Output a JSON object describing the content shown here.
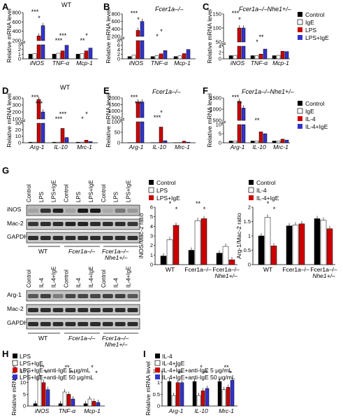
{
  "colors": {
    "black": "#000000",
    "white": "#ffffff",
    "red": "#cc0000",
    "blue": "#3333cc"
  },
  "panels": {
    "A": {
      "letter": "A",
      "title": "WT"
    },
    "B": {
      "letter": "B",
      "title": "Fcer1a–/–"
    },
    "C": {
      "letter": "C",
      "title": "Fcer1a–/–Nhe1+/–"
    },
    "D": {
      "letter": "D",
      "title": "WT"
    },
    "E": {
      "letter": "E",
      "title": "Fcer1a–/–"
    },
    "F": {
      "letter": "F",
      "title": "Fcer1a–/–Nhe1+/–"
    },
    "G": {
      "letter": "G"
    },
    "H": {
      "letter": "H"
    },
    "I": {
      "letter": "I"
    }
  },
  "ylabels": {
    "mrna": "Relative mRNA level",
    "inos_ratio": "iNOS/Mac-2 ratio",
    "arg_ratio": "Arg-1/Mac-2 ratio"
  },
  "legends": {
    "m1": [
      "Control",
      "IgE",
      "LPS",
      "LPS+IgE"
    ],
    "m2": [
      "Control",
      "IgE",
      "IL-4",
      "IL-4+IgE"
    ],
    "g_left": [
      "Control",
      "LPS",
      "LPS+IgE"
    ],
    "g_right": [
      "Control",
      "IL-4",
      "IL-4+IgE"
    ],
    "h": [
      "LPS",
      "LPS+IgE",
      "LPS+IgE+anti-IgE 5 μg/mL",
      "LPS+IgE+anti-IgE 50 μg/mL"
    ],
    "i": [
      "IL-4",
      "IL-4+IgE",
      "IL-4+IgE+anti-IgE 5 μg/mL",
      "IL-4+IgE+anti-IgE 50 μg/mL"
    ]
  },
  "blot": {
    "lanes_top": [
      "Control",
      "LPS",
      "LPS+IgE",
      "Control",
      "LPS",
      "LPS+IgE",
      "Control",
      "LPS",
      "LPS+IgE"
    ],
    "lanes_bottom": [
      "Control",
      "IL-4",
      "IL-4+IgE",
      "Control",
      "IL-4",
      "IL-4+IgE",
      "Control",
      "IL-4",
      "IL-4+IgE"
    ],
    "rows_top": [
      "iNOS",
      "Mac-2",
      "GAPDH"
    ],
    "rows_bottom": [
      "Arg-1",
      "Mac-2",
      "GAPDH"
    ],
    "genotypes": [
      "WT",
      "Fcer1a–/–",
      "Fcer1a–/–"
    ],
    "genotype_sub": "Nhe1+/–"
  },
  "chart_data": [
    {
      "id": "A",
      "type": "bar",
      "title": "WT",
      "ylabel": "Relative mRNA level",
      "categories": [
        "iNOS",
        "TNF-α",
        "Mcp-1"
      ],
      "broken_axis": true,
      "ylim_low": [
        0,
        3
      ],
      "yticks_low": [
        0,
        1,
        2,
        3
      ],
      "ylim_high": [
        200,
        800
      ],
      "yticks_high": [
        200,
        400,
        600,
        800
      ],
      "series": [
        {
          "name": "Control",
          "values": [
            1,
            1,
            1
          ]
        },
        {
          "name": "IgE",
          "values": [
            1.1,
            1.2,
            1.1
          ]
        },
        {
          "name": "LPS",
          "values": [
            300,
            1.7,
            1.7
          ]
        },
        {
          "name": "LPS+IgE",
          "values": [
            520,
            2.9,
            2.3
          ]
        }
      ],
      "significance": [
        "***",
        "*",
        "***",
        "***",
        "**",
        "*"
      ]
    },
    {
      "id": "B",
      "type": "bar",
      "title": "Fcer1a–/–",
      "ylabel": "Relative mRNA level",
      "categories": [
        "iNOS",
        "TNF-α",
        "Mcp-1"
      ],
      "broken_axis": true,
      "ylim_low": [
        0,
        8
      ],
      "yticks_low": [
        0,
        2,
        4,
        6,
        8
      ],
      "ylim_high": [
        200,
        800
      ],
      "yticks_high": [
        200,
        400,
        600,
        800
      ],
      "series": [
        {
          "name": "Control",
          "values": [
            1,
            1,
            1
          ]
        },
        {
          "name": "IgE",
          "values": [
            1.6,
            1.4,
            1.3
          ]
        },
        {
          "name": "LPS",
          "values": [
            360,
            2.2,
            2.3
          ]
        },
        {
          "name": "LPS+IgE",
          "values": [
            600,
            3.6,
            4.1
          ]
        }
      ],
      "significance": [
        "***",
        "*",
        "*",
        "*"
      ]
    },
    {
      "id": "C",
      "type": "bar",
      "title": "Fcer1a–/–Nhe1+/–",
      "ylabel": "Relative mRNA level",
      "categories": [
        "iNOS",
        "TNF-α",
        "Mcp-1"
      ],
      "broken_axis": true,
      "ylim_low": [
        0,
        4
      ],
      "yticks_low": [
        0,
        2,
        4
      ],
      "ylim_high": [
        50,
        150
      ],
      "yticks_high": [
        50,
        100,
        150
      ],
      "series": [
        {
          "name": "Control",
          "values": [
            1,
            1,
            1
          ]
        },
        {
          "name": "IgE",
          "values": [
            1.1,
            1,
            1.1
          ]
        },
        {
          "name": "LPS",
          "values": [
            100,
            1.5,
            2.4
          ]
        },
        {
          "name": "LPS+IgE",
          "values": [
            100,
            3.1,
            2.3
          ]
        }
      ],
      "significance": [
        "***",
        "*",
        "*",
        "**"
      ]
    },
    {
      "id": "D",
      "type": "bar",
      "title": "WT",
      "ylabel": "Relative mRNA level",
      "categories": [
        "Arg-1",
        "IL-10",
        "Mrc-1"
      ],
      "broken_axis": true,
      "ylim_low": [
        0,
        30
      ],
      "yticks_low": [
        0,
        10,
        20,
        30
      ],
      "ylim_high": [
        100,
        400
      ],
      "yticks_high": [
        100,
        200,
        300,
        400
      ],
      "series": [
        {
          "name": "Control",
          "values": [
            1,
            1,
            1
          ]
        },
        {
          "name": "IgE",
          "values": [
            1,
            1,
            1
          ]
        },
        {
          "name": "IL-4",
          "values": [
            380,
            22,
            4
          ]
        },
        {
          "name": "IL-4+IgE",
          "values": [
            200,
            8,
            2
          ]
        }
      ],
      "significance": [
        "***",
        "***",
        "***",
        "***",
        "*",
        "*"
      ]
    },
    {
      "id": "E",
      "type": "bar",
      "title": "Fcer1a–/–",
      "ylabel": "Relative mRNA level",
      "categories": [
        "Arg-1",
        "IL-10",
        "Mrc-1"
      ],
      "broken_axis": true,
      "ylim_low": [
        0,
        100
      ],
      "yticks_low": [
        0,
        50,
        100
      ],
      "ylim_high": [
        500,
        2000
      ],
      "yticks_high": [
        500,
        1000,
        1500,
        2000
      ],
      "series": [
        {
          "name": "Control",
          "values": [
            1,
            1,
            1
          ]
        },
        {
          "name": "IgE",
          "values": [
            1,
            1,
            1
          ]
        },
        {
          "name": "IL-4",
          "values": [
            1700,
            75,
            8
          ]
        },
        {
          "name": "IL-4+IgE",
          "values": [
            1700,
            10,
            3
          ]
        }
      ],
      "significance": [
        "***",
        "***",
        "***",
        "*"
      ]
    },
    {
      "id": "F",
      "type": "bar",
      "title": "Fcer1a–/–Nhe1+/–",
      "ylabel": "Relative mRNA level",
      "categories": [
        "Arg-1",
        "IL-10",
        "Mrc-1"
      ],
      "broken_axis": true,
      "ylim_low": [
        0,
        10
      ],
      "yticks_low": [
        0,
        5,
        10
      ],
      "ylim_high": [
        500,
        1500
      ],
      "yticks_high": [
        500,
        1000,
        1500
      ],
      "series": [
        {
          "name": "Control",
          "values": [
            1,
            1,
            1
          ]
        },
        {
          "name": "IgE",
          "values": [
            1,
            1,
            1
          ]
        },
        {
          "name": "IL-4",
          "values": [
            1350,
            6,
            2
          ]
        },
        {
          "name": "IL-4+IgE",
          "values": [
            1050,
            5,
            1.5
          ]
        }
      ],
      "significance": [
        "***",
        "**",
        "**"
      ]
    },
    {
      "id": "G-iNOS",
      "type": "bar",
      "ylabel": "iNOS/Mac-2 ratio",
      "categories": [
        "WT",
        "Fcer1a–/–",
        "Fcer1a–/– Nhe1+/–"
      ],
      "ylim": [
        0,
        6
      ],
      "yticks": [
        0,
        1,
        2,
        3,
        4,
        5,
        6
      ],
      "series": [
        {
          "name": "Control",
          "values": [
            0.9,
            1.5,
            1.2
          ]
        },
        {
          "name": "LPS",
          "values": [
            2.6,
            4.6,
            1.9
          ]
        },
        {
          "name": "LPS+IgE",
          "values": [
            4.1,
            4.8,
            0.5
          ]
        }
      ],
      "significance": [
        "*",
        "*",
        "**",
        "*"
      ]
    },
    {
      "id": "G-Arg1",
      "type": "bar",
      "ylabel": "Arg-1/Mac-2 ratio",
      "categories": [
        "WT",
        "Fcer1a–/–",
        "Fcer1a–/– Nhe1+/–"
      ],
      "ylim": [
        0,
        2
      ],
      "yticks": [
        0,
        0.5,
        1,
        1.5,
        2
      ],
      "series": [
        {
          "name": "Control",
          "values": [
            1.0,
            1.35,
            1.6
          ]
        },
        {
          "name": "IL-4",
          "values": [
            1.65,
            1.38,
            1.55
          ]
        },
        {
          "name": "IL-4+IgE",
          "values": [
            0.65,
            1.42,
            1.25
          ]
        }
      ],
      "significance": [
        "*",
        "*"
      ]
    },
    {
      "id": "H",
      "type": "bar",
      "ylabel": "Relative mRNA level",
      "categories": [
        "iNOS",
        "TNF-α",
        "Mcp-1"
      ],
      "ylim": [
        0,
        15
      ],
      "yticks": [
        0,
        5,
        10,
        15
      ],
      "series": [
        {
          "name": "LPS",
          "values": [
            1,
            1,
            1
          ]
        },
        {
          "name": "LPS+IgE",
          "values": [
            13,
            6,
            3
          ]
        },
        {
          "name": "LPS+IgE+anti-IgE 5 μg/mL",
          "values": [
            10,
            5,
            2
          ]
        },
        {
          "name": "LPS+IgE+anti-IgE 50 μg/mL",
          "values": [
            7,
            3,
            1.5
          ]
        }
      ],
      "significance": [
        "**",
        "*",
        "**",
        "**",
        "*",
        "*"
      ]
    },
    {
      "id": "I",
      "type": "bar",
      "ylabel": "Relative mRNA level",
      "categories": [
        "Arg-1",
        "IL-10",
        "Mrc-1"
      ],
      "ylim": [
        0,
        1.5
      ],
      "yticks": [
        0,
        0.5,
        1,
        1.5
      ],
      "series": [
        {
          "name": "IL-4",
          "values": [
            1.05,
            1.05,
            1.05
          ]
        },
        {
          "name": "IL-4+IgE",
          "values": [
            0.45,
            0.45,
            0.7
          ]
        },
        {
          "name": "IL-4+IgE+anti-IgE 5 μg/mL",
          "values": [
            1.0,
            0.65,
            0.8
          ]
        },
        {
          "name": "IL-4+IgE+anti-IgE 50 μg/mL",
          "values": [
            1.0,
            0.75,
            1.1
          ]
        }
      ],
      "significance": [
        "*",
        "**",
        "*",
        "**",
        "**",
        "*"
      ]
    }
  ]
}
